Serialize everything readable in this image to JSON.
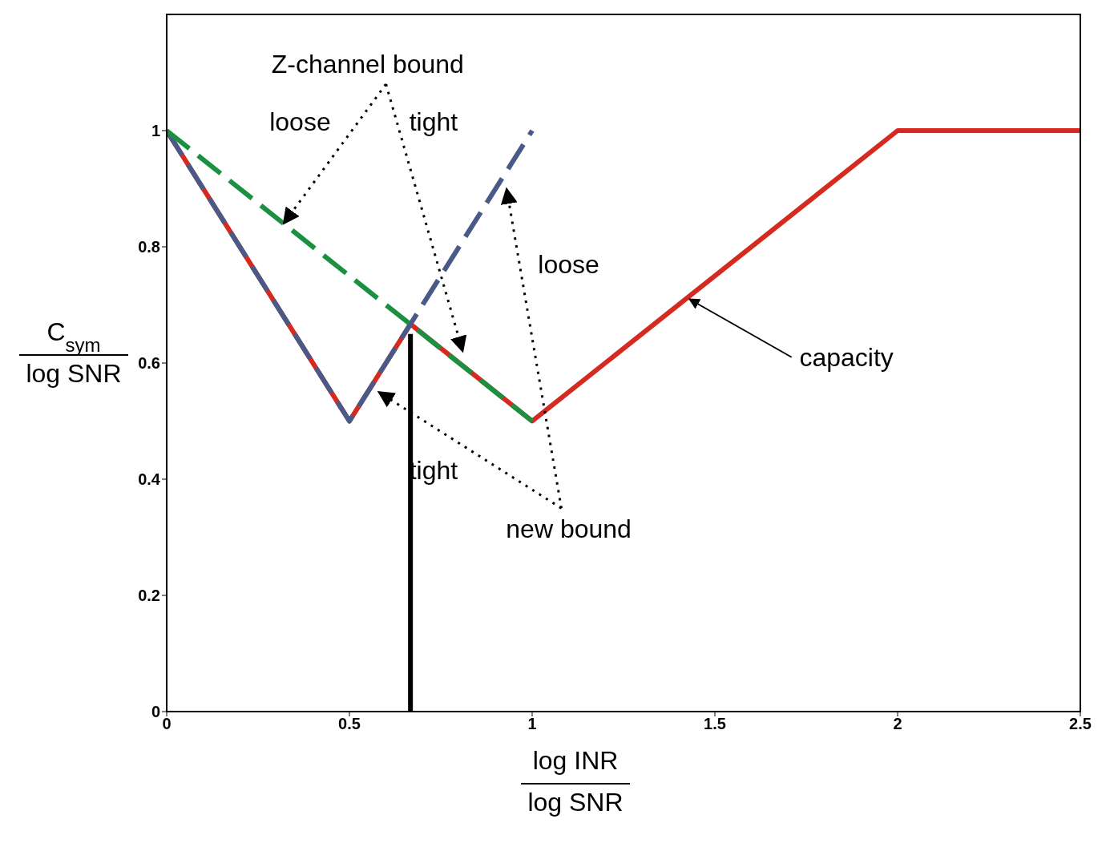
{
  "chart_data": {
    "type": "line",
    "xlabel": "log INR\nlog SNR",
    "ylabel": "C$_{sym}$\nlog SNR",
    "xlim": [
      0,
      2.5
    ],
    "xticks": [
      0,
      0.5,
      1,
      1.5,
      2,
      2.5
    ],
    "ylim": [
      0,
      1.2
    ],
    "yticks": [
      0,
      0.2,
      0.4,
      0.6,
      0.8,
      1
    ],
    "grid": false,
    "series": [
      {
        "color": "#d42a20",
        "line_style": "solid",
        "x": [
          0,
          0.5,
          0.667,
          1,
          2,
          2.5
        ],
        "values": [
          1,
          0.5,
          0.667,
          0.5,
          1,
          1
        ]
      },
      {
        "color": "#4a5a88",
        "line_style": "dashed",
        "x": [
          0,
          0.5,
          1
        ],
        "values": [
          1,
          0.5,
          1
        ]
      },
      {
        "color": "#1b9040",
        "line_style": "dashed",
        "x": [
          0,
          1
        ],
        "values": [
          1,
          0.5
        ]
      },
      {
        "color": "#000000",
        "line_style": "solid",
        "x": [
          0.667,
          0.667
        ],
        "values": [
          0,
          0.65
        ]
      }
    ],
    "annotations": [
      {
        "text": "Z-channel bound",
        "x": 0.32,
        "y": 0.84
      },
      "loose",
      "tight",
      "loose",
      "tight",
      "new bound",
      {
        "text": "capacity",
        "x": 1.43,
        "y": 0.71
      }
    ]
  }
}
